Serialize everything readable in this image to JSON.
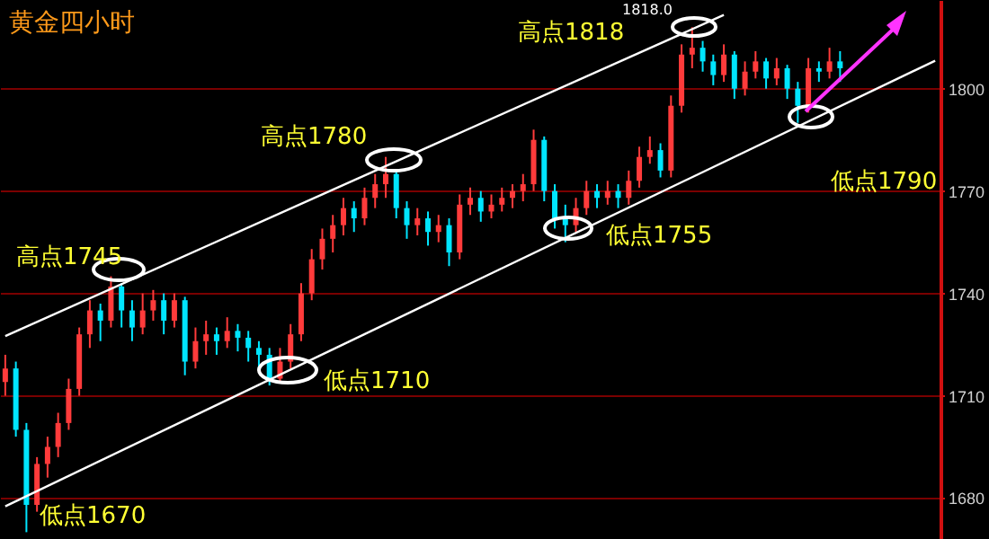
{
  "chart_data": {
    "type": "candlestick",
    "title": "黄金四小时",
    "categories": [
      null,
      null,
      null,
      null,
      null,
      null,
      null,
      null,
      null,
      null,
      null,
      null,
      null,
      null,
      null,
      null,
      null,
      null,
      null,
      null,
      null,
      null,
      null,
      null,
      null,
      null,
      null,
      null,
      null,
      null,
      null,
      null,
      null,
      null,
      null,
      null,
      null,
      null,
      null,
      null,
      null,
      null,
      null,
      null,
      null,
      null,
      null,
      null,
      null,
      null,
      null,
      null,
      null,
      null,
      null,
      null,
      null,
      null,
      null,
      null,
      null,
      null,
      null,
      null,
      null,
      null,
      null,
      null,
      null,
      null,
      null,
      null,
      null,
      null,
      null,
      null,
      null,
      null,
      null,
      null,
      null,
      null,
      null,
      null,
      null,
      null,
      null,
      null,
      null
    ],
    "ohlc": [
      [
        1714,
        1722,
        1710,
        1718
      ],
      [
        1718,
        1720,
        1698,
        1700
      ],
      [
        1700,
        1702,
        1670,
        1678
      ],
      [
        1678,
        1692,
        1676,
        1690
      ],
      [
        1690,
        1698,
        1686,
        1695
      ],
      [
        1695,
        1705,
        1692,
        1702
      ],
      [
        1702,
        1715,
        1700,
        1712
      ],
      [
        1712,
        1730,
        1710,
        1728
      ],
      [
        1728,
        1738,
        1724,
        1735
      ],
      [
        1735,
        1737,
        1726,
        1732
      ],
      [
        1732,
        1745,
        1730,
        1742
      ],
      [
        1742,
        1743,
        1730,
        1735
      ],
      [
        1735,
        1738,
        1726,
        1730
      ],
      [
        1730,
        1740,
        1728,
        1735
      ],
      [
        1735,
        1741,
        1732,
        1738
      ],
      [
        1738,
        1740,
        1728,
        1732
      ],
      [
        1732,
        1740,
        1730,
        1738
      ],
      [
        1738,
        1739,
        1716,
        1720
      ],
      [
        1720,
        1730,
        1718,
        1726
      ],
      [
        1726,
        1732,
        1722,
        1728
      ],
      [
        1728,
        1730,
        1722,
        1726
      ],
      [
        1726,
        1733,
        1724,
        1729
      ],
      [
        1729,
        1731,
        1723,
        1727
      ],
      [
        1727,
        1729,
        1720,
        1724
      ],
      [
        1724,
        1726,
        1718,
        1722
      ],
      [
        1722,
        1724,
        1713,
        1715
      ],
      [
        1715,
        1724,
        1714,
        1720
      ],
      [
        1720,
        1731,
        1718,
        1728
      ],
      [
        1728,
        1743,
        1726,
        1740
      ],
      [
        1740,
        1753,
        1738,
        1750
      ],
      [
        1750,
        1759,
        1747,
        1756
      ],
      [
        1756,
        1763,
        1752,
        1760
      ],
      [
        1760,
        1768,
        1757,
        1765
      ],
      [
        1765,
        1767,
        1758,
        1762
      ],
      [
        1762,
        1771,
        1760,
        1768
      ],
      [
        1768,
        1775,
        1765,
        1772
      ],
      [
        1772,
        1780,
        1768,
        1775
      ],
      [
        1775,
        1776,
        1762,
        1765
      ],
      [
        1765,
        1767,
        1756,
        1760
      ],
      [
        1760,
        1765,
        1757,
        1762
      ],
      [
        1762,
        1764,
        1754,
        1758
      ],
      [
        1758,
        1763,
        1755,
        1760
      ],
      [
        1760,
        1762,
        1748,
        1752
      ],
      [
        1752,
        1769,
        1750,
        1766
      ],
      [
        1766,
        1771,
        1763,
        1768
      ],
      [
        1768,
        1770,
        1761,
        1764
      ],
      [
        1764,
        1769,
        1762,
        1766
      ],
      [
        1766,
        1771,
        1764,
        1768
      ],
      [
        1768,
        1772,
        1765,
        1770
      ],
      [
        1770,
        1775,
        1767,
        1772
      ],
      [
        1772,
        1788,
        1770,
        1785
      ],
      [
        1785,
        1786,
        1767,
        1770
      ],
      [
        1770,
        1772,
        1759,
        1762
      ],
      [
        1762,
        1766,
        1755,
        1760
      ],
      [
        1760,
        1768,
        1758,
        1765
      ],
      [
        1765,
        1773,
        1763,
        1770
      ],
      [
        1770,
        1772,
        1765,
        1768
      ],
      [
        1768,
        1773,
        1766,
        1770
      ],
      [
        1770,
        1772,
        1765,
        1768
      ],
      [
        1768,
        1776,
        1766,
        1773
      ],
      [
        1773,
        1783,
        1771,
        1780
      ],
      [
        1780,
        1786,
        1778,
        1782
      ],
      [
        1782,
        1784,
        1774,
        1776
      ],
      [
        1776,
        1798,
        1774,
        1795
      ],
      [
        1795,
        1813,
        1793,
        1810
      ],
      [
        1810,
        1818,
        1806,
        1812
      ],
      [
        1812,
        1814,
        1805,
        1808
      ],
      [
        1808,
        1810,
        1801,
        1804
      ],
      [
        1804,
        1813,
        1802,
        1810
      ],
      [
        1810,
        1811,
        1797,
        1800
      ],
      [
        1800,
        1808,
        1798,
        1805
      ],
      [
        1805,
        1811,
        1803,
        1808
      ],
      [
        1808,
        1809,
        1800,
        1803
      ],
      [
        1803,
        1809,
        1801,
        1806
      ],
      [
        1806,
        1807,
        1797,
        1800
      ],
      [
        1800,
        1802,
        1790,
        1795
      ],
      [
        1795,
        1809,
        1793,
        1806
      ],
      [
        1806,
        1808,
        1802,
        1805
      ],
      [
        1805,
        1812,
        1803,
        1808
      ],
      [
        1808,
        1811,
        1802,
        1806
      ],
      null,
      null,
      null,
      null,
      null,
      null,
      null,
      null,
      null
    ],
    "series": [
      {
        "type": "line",
        "color": "#ffffff",
        "values": [
          1727.5,
          null,
          null,
          null,
          null,
          null,
          null,
          null,
          null,
          null,
          null,
          null,
          null,
          null,
          null,
          null,
          null,
          null,
          null,
          null,
          null,
          null,
          null,
          null,
          null,
          null,
          null,
          null,
          null,
          null,
          null,
          null,
          null,
          null,
          null,
          null,
          null,
          null,
          null,
          null,
          null,
          null,
          null,
          null,
          null,
          null,
          null,
          null,
          null,
          null,
          null,
          null,
          null,
          null,
          null,
          null,
          null,
          null,
          null,
          null,
          null,
          null,
          null,
          null,
          null,
          null,
          null,
          null,
          1821.6,
          null,
          null,
          null,
          null,
          null,
          null,
          null,
          null,
          null,
          null,
          null,
          null,
          null,
          null,
          null,
          null,
          null,
          null,
          null,
          null
        ]
      },
      {
        "type": "line",
        "color": "#ffffff",
        "values": [
          1677.6,
          null,
          null,
          null,
          null,
          null,
          null,
          null,
          null,
          null,
          null,
          null,
          null,
          null,
          null,
          null,
          null,
          null,
          null,
          null,
          null,
          null,
          null,
          null,
          null,
          null,
          null,
          null,
          null,
          null,
          null,
          null,
          null,
          null,
          null,
          null,
          null,
          null,
          null,
          null,
          null,
          null,
          null,
          null,
          null,
          null,
          null,
          null,
          null,
          null,
          null,
          null,
          null,
          null,
          null,
          null,
          null,
          null,
          null,
          null,
          null,
          null,
          null,
          null,
          null,
          null,
          null,
          null,
          null,
          null,
          null,
          null,
          null,
          null,
          null,
          null,
          null,
          null,
          null,
          null,
          null,
          null,
          null,
          null,
          null,
          null,
          null,
          null,
          1808.2
        ]
      }
    ],
    "ylim": [
      1668,
      1826
    ],
    "yticks": [
      1680,
      1710,
      1740,
      1770,
      1800
    ],
    "grid": "y",
    "annotations": [
      "高点1745",
      "高点1780",
      "高点1818",
      "1818.0",
      "低点1670",
      "低点1710",
      "低点1755",
      "低点1790"
    ]
  }
}
